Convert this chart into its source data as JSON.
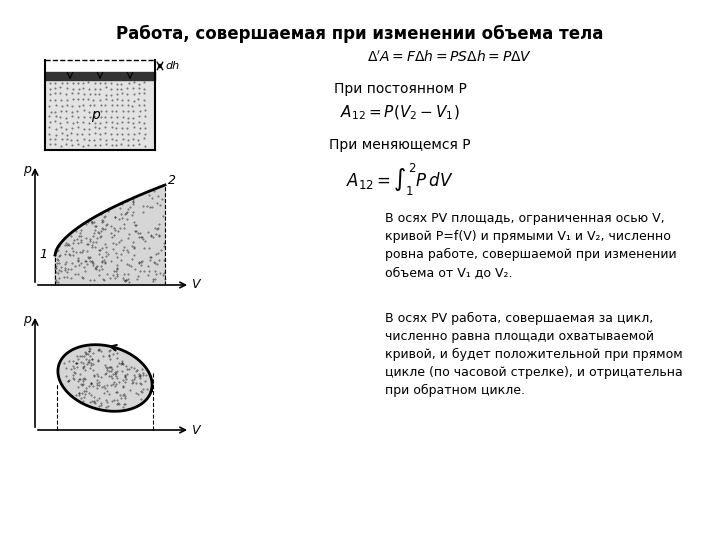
{
  "title": "Работа, совершаемая при изменении объема тела",
  "bg_color": "#ffffff",
  "formula1": "$\\Delta'A = F\\Delta h = PS\\Delta h = P\\Delta V$",
  "label_const_p": "При постоянном P",
  "formula2": "$A_{12} = P(V_2 - V_1)$",
  "label_var_p": "При меняющемся P",
  "formula3": "$A_{12} = \\int_1^2 P\\,dV$",
  "text_pv1": "В осях PV площадь, ограниченная осью V,\nкривой P=f(V) и прямыми V₁ и V₂, численно\nровна работе, совершаемой при изменении\nобъема от V₁ до V₂.",
  "text_pv2": "В осях PV работа, совершаемая за цикл,\nчисленно равна площади охватываемой\nкривой, и будет положительной при прямом\nцикле (по часовой стрелке), и отрицательна\nпри обратном цикле."
}
